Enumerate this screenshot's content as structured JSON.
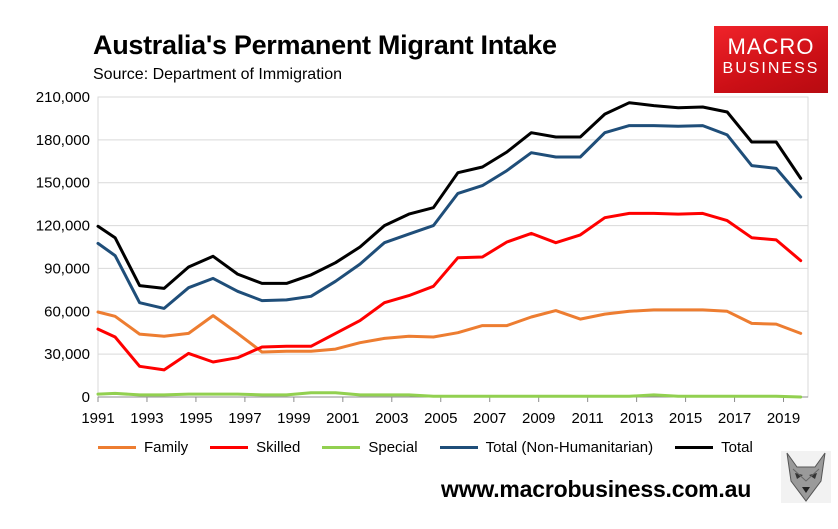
{
  "header": {
    "title": "Australia's Permanent Migrant Intake",
    "subtitle": "Source: Department of Immigration"
  },
  "logo": {
    "line1": "MACRO",
    "line2": "BUSINESS"
  },
  "footer": {
    "url": "www.macrobusiness.com.au"
  },
  "chart_data": {
    "type": "line",
    "title": "Australia's Permanent Migrant Intake",
    "xlabel": "",
    "ylabel": "",
    "xlim": [
      1991,
      2020
    ],
    "ylim": [
      0,
      210000
    ],
    "y_ticks": [
      0,
      30000,
      60000,
      90000,
      120000,
      150000,
      180000,
      210000
    ],
    "y_tick_labels": [
      "0",
      "30,000",
      "60,000",
      "90,000",
      "120,000",
      "150,000",
      "180,000",
      "210,000"
    ],
    "x_ticks": [
      1991,
      1993,
      1995,
      1997,
      1999,
      2001,
      2003,
      2005,
      2007,
      2009,
      2011,
      2013,
      2015,
      2017,
      2019
    ],
    "x_tick_labels": [
      "1991",
      "1993",
      "1995",
      "1997",
      "1999",
      "2001",
      "2003",
      "2005",
      "2007",
      "2009",
      "2011",
      "2013",
      "2015",
      "2017",
      "2019"
    ],
    "grid": "horizontal",
    "legend_position": "bottom",
    "x": [
      1991,
      1991.7,
      1992.7,
      1993.7,
      1994.7,
      1995.7,
      1996.7,
      1997.7,
      1998.7,
      1999.7,
      2000.7,
      2001.7,
      2002.7,
      2003.7,
      2004.7,
      2005.7,
      2006.7,
      2007.7,
      2008.7,
      2009.7,
      2010.7,
      2011.7,
      2012.7,
      2013.7,
      2014.7,
      2015.7,
      2016.7,
      2017.7,
      2018.7,
      2019.7
    ],
    "series": [
      {
        "name": "Family",
        "color": "#ed7d31",
        "values": [
          59500,
          56500,
          44000,
          42500,
          44500,
          57000,
          44500,
          31500,
          32000,
          32000,
          33500,
          38000,
          41000,
          42500,
          42000,
          45000,
          50000,
          50000,
          56000,
          60500,
          54500,
          58000,
          60000,
          61000,
          61000,
          61000,
          60000,
          51500,
          51000,
          44500
        ]
      },
      {
        "name": "Skilled",
        "color": "#ff0000",
        "values": [
          47500,
          42000,
          21500,
          19000,
          30500,
          24500,
          27500,
          35000,
          35500,
          35500,
          44500,
          53500,
          66000,
          71000,
          77500,
          97500,
          98000,
          108500,
          114500,
          108000,
          113500,
          125500,
          128500,
          128500,
          128000,
          128500,
          123500,
          111500,
          110000,
          95500
        ]
      },
      {
        "name": "Special",
        "color": "#92d050",
        "values": [
          2000,
          2500,
          1500,
          1500,
          2000,
          2000,
          2000,
          1500,
          1500,
          3000,
          3000,
          1500,
          1500,
          1500,
          500,
          500,
          500,
          500,
          500,
          500,
          500,
          500,
          500,
          1500,
          500,
          500,
          500,
          500,
          500,
          0
        ]
      },
      {
        "name": "Total (Non-Humanitarian)",
        "color": "#1f4e79",
        "values": [
          107500,
          99000,
          66000,
          62000,
          76500,
          83000,
          74000,
          67500,
          68000,
          70500,
          81000,
          93000,
          108000,
          114000,
          120000,
          142500,
          148000,
          158500,
          171000,
          168000,
          168000,
          185000,
          190000,
          190000,
          189500,
          190000,
          183500,
          162000,
          160000,
          140000
        ]
      },
      {
        "name": "Total",
        "color": "#000000",
        "values": [
          119500,
          111500,
          78000,
          76000,
          91000,
          98500,
          86000,
          79500,
          79500,
          85500,
          94000,
          105000,
          120000,
          128000,
          132500,
          157000,
          161000,
          171500,
          185000,
          182000,
          182000,
          198000,
          206000,
          204000,
          202500,
          203000,
          199500,
          178500,
          178500,
          153000
        ]
      }
    ]
  }
}
